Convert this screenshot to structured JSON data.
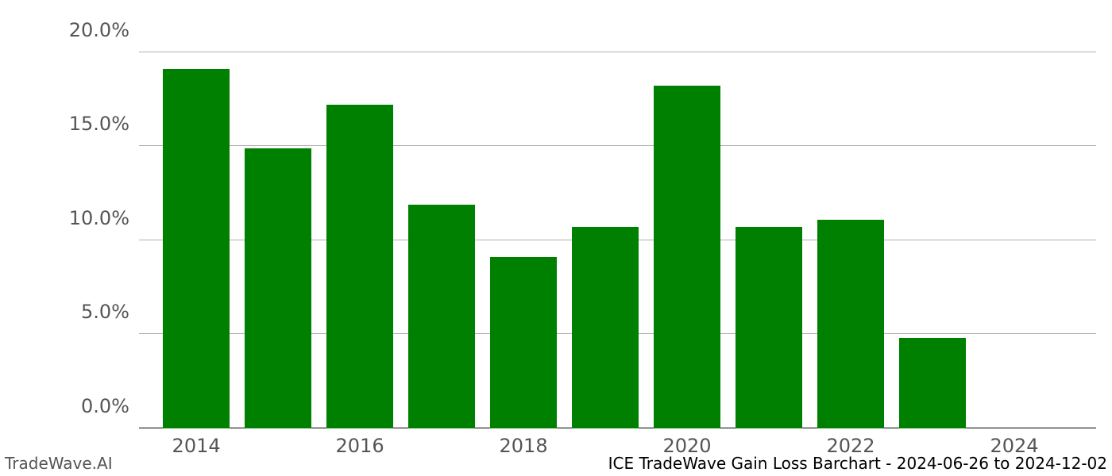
{
  "chart": {
    "type": "bar",
    "background_color": "#ffffff",
    "grid_color": "#b0b0b0",
    "baseline_color": "#000000",
    "bar_color": "#008000",
    "label_color": "#555555",
    "label_fontsize": 24,
    "footer_fontsize": 20,
    "ylim": [
      0,
      21.5
    ],
    "y_ticks": [
      {
        "value": 0,
        "label": "0.0%"
      },
      {
        "value": 5,
        "label": "5.0%"
      },
      {
        "value": 10,
        "label": "10.0%"
      },
      {
        "value": 15,
        "label": "15.0%"
      },
      {
        "value": 20,
        "label": "20.0%"
      }
    ],
    "x_ticks": [
      {
        "year": 2014,
        "label": "2014"
      },
      {
        "year": 2016,
        "label": "2016"
      },
      {
        "year": 2018,
        "label": "2018"
      },
      {
        "year": 2020,
        "label": "2020"
      },
      {
        "year": 2022,
        "label": "2022"
      },
      {
        "year": 2024,
        "label": "2024"
      }
    ],
    "x_domain": [
      2013.3,
      2025.0
    ],
    "bar_width_years": 0.82,
    "bars": [
      {
        "year": 2014,
        "value": 19.1
      },
      {
        "year": 2015,
        "value": 14.9
      },
      {
        "year": 2016,
        "value": 17.2
      },
      {
        "year": 2017,
        "value": 11.9
      },
      {
        "year": 2018,
        "value": 9.1
      },
      {
        "year": 2019,
        "value": 10.7
      },
      {
        "year": 2020,
        "value": 18.2
      },
      {
        "year": 2021,
        "value": 10.7
      },
      {
        "year": 2022,
        "value": 11.1
      },
      {
        "year": 2023,
        "value": 4.8
      }
    ]
  },
  "footer": {
    "left": "TradeWave.AI",
    "right": "ICE TradeWave Gain Loss Barchart - 2024-06-26 to 2024-12-02"
  }
}
